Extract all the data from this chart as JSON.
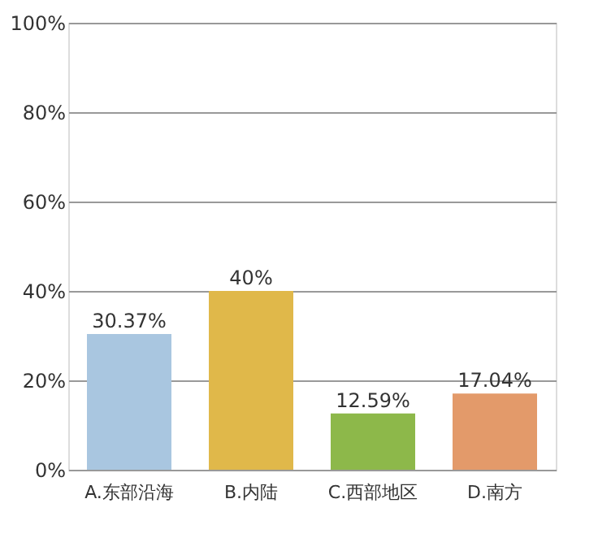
{
  "chart_data": {
    "type": "bar",
    "categories": [
      "A.东部沿海",
      "B.内陆",
      "C.西部地区",
      "D.南方"
    ],
    "values": [
      30.37,
      40,
      12.59,
      17.04
    ],
    "colors": [
      "#a9c6e0",
      "#e0b84a",
      "#8db84a",
      "#e39a6a"
    ],
    "value_labels": [
      "30.37%",
      "40%",
      "12.59%",
      "17.04%"
    ],
    "ylim": [
      0,
      100
    ],
    "yticks": [
      {
        "value": 0,
        "label": "0%"
      },
      {
        "value": 20,
        "label": "20%"
      },
      {
        "value": 40,
        "label": "40%"
      },
      {
        "value": 60,
        "label": "60%"
      },
      {
        "value": 80,
        "label": "80%"
      },
      {
        "value": 100,
        "label": "100%"
      }
    ],
    "grid": "y"
  }
}
